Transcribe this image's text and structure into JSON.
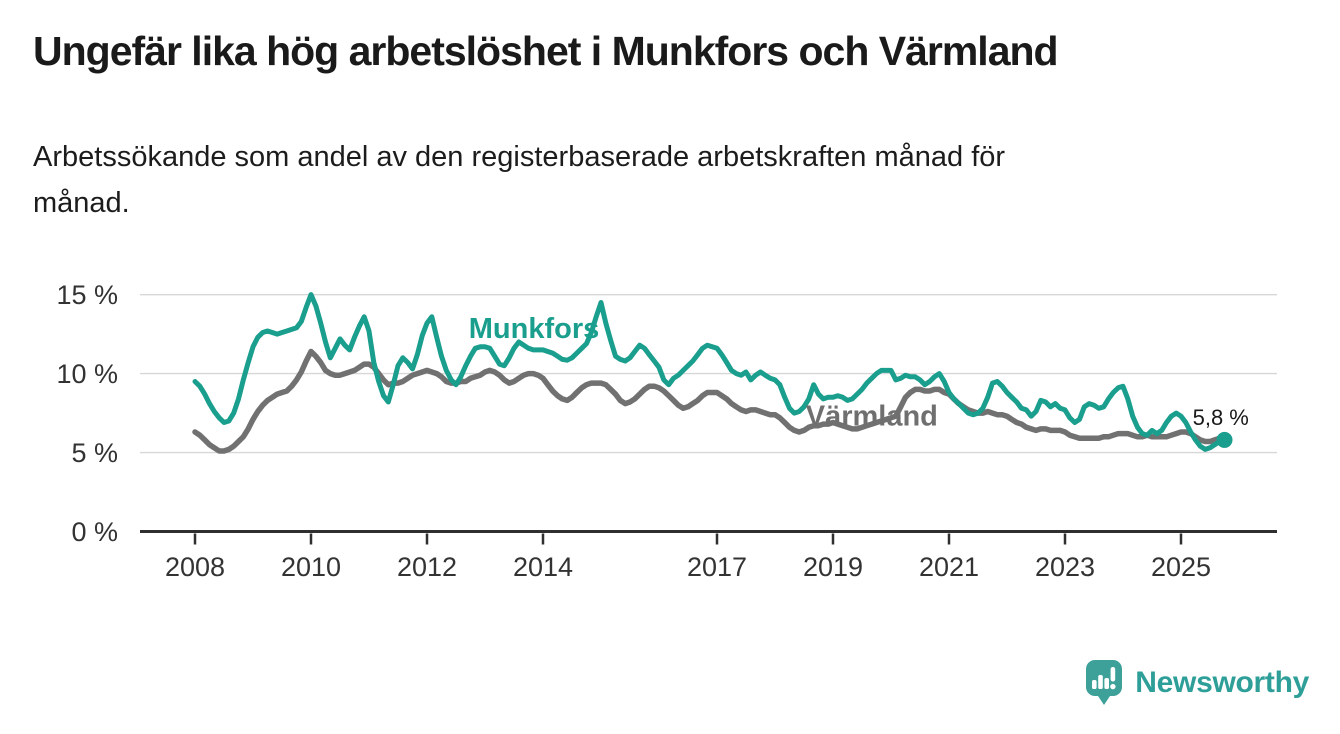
{
  "header": {
    "title": "Ungefär lika hög arbetslöshet i Munkfors och Värmland",
    "subtitle_lines": [
      "Arbetssökande som andel av den registerbaserade arbetskraften månad för",
      "månad."
    ]
  },
  "chart_data": {
    "type": "line",
    "frequency": "monthly",
    "x_start": "2008-01",
    "x_end": "2025-10",
    "grid": true,
    "colors": {
      "munkfors": "#1A9E8D",
      "varmland": "#717171",
      "grid_line": "#d7d7d7",
      "axis": "#2f2f2f",
      "tick_text": "#333333",
      "annotation_text": "#1a1a1a"
    },
    "y_axis": {
      "ylim": [
        0,
        15.8
      ],
      "ticks": [
        {
          "value": 0,
          "label": "0 %"
        },
        {
          "value": 5,
          "label": "5 %"
        },
        {
          "value": 10,
          "label": "10 %"
        },
        {
          "value": 15,
          "label": "15 %"
        }
      ]
    },
    "x_axis": {
      "ticks": [
        {
          "year": 2008,
          "label": "2008"
        },
        {
          "year": 2010,
          "label": "2010"
        },
        {
          "year": 2012,
          "label": "2012"
        },
        {
          "year": 2014,
          "label": "2014"
        },
        {
          "year": 2017,
          "label": "2017"
        },
        {
          "year": 2019,
          "label": "2019"
        },
        {
          "year": 2021,
          "label": "2021"
        },
        {
          "year": 2023,
          "label": "2023"
        },
        {
          "year": 2025,
          "label": "2025"
        }
      ]
    },
    "series": [
      {
        "id": "munkfors",
        "name": "Munkfors",
        "color": "#1A9E8D",
        "line_width": 5,
        "values": [
          9.5,
          9.2,
          8.7,
          8.1,
          7.6,
          7.2,
          6.9,
          7.0,
          7.5,
          8.4,
          9.6,
          10.7,
          11.7,
          12.3,
          12.6,
          12.7,
          12.6,
          12.5,
          12.6,
          12.7,
          12.8,
          12.9,
          13.3,
          14.2,
          15.0,
          14.3,
          13.2,
          12.0,
          11.0,
          11.6,
          12.2,
          11.8,
          11.5,
          12.3,
          13.0,
          13.6,
          12.7,
          10.7,
          9.5,
          8.6,
          8.2,
          9.3,
          10.5,
          11.0,
          10.7,
          10.3,
          11.2,
          12.4,
          13.2,
          13.6,
          12.3,
          11.1,
          10.2,
          9.6,
          9.3,
          9.8,
          10.5,
          11.1,
          11.6,
          11.7,
          11.7,
          11.6,
          11.1,
          10.6,
          10.5,
          11.0,
          11.6,
          12.0,
          11.8,
          11.6,
          11.5,
          11.5,
          11.5,
          11.4,
          11.3,
          11.1,
          10.9,
          10.85,
          11.0,
          11.3,
          11.6,
          11.9,
          12.6,
          13.6,
          14.5,
          13.2,
          12.1,
          11.1,
          10.9,
          10.8,
          11.0,
          11.4,
          11.8,
          11.6,
          11.2,
          10.8,
          10.4,
          9.6,
          9.3,
          9.7,
          9.9,
          10.2,
          10.5,
          10.8,
          11.2,
          11.6,
          11.8,
          11.7,
          11.6,
          11.2,
          10.7,
          10.2,
          10.0,
          9.9,
          10.1,
          9.6,
          9.9,
          10.1,
          9.9,
          9.7,
          9.6,
          9.3,
          8.5,
          7.8,
          7.5,
          7.6,
          7.9,
          8.4,
          9.3,
          8.7,
          8.4,
          8.5,
          8.5,
          8.6,
          8.5,
          8.3,
          8.4,
          8.7,
          9.0,
          9.4,
          9.7,
          10.0,
          10.2,
          10.2,
          10.2,
          9.6,
          9.7,
          9.9,
          9.8,
          9.8,
          9.6,
          9.3,
          9.5,
          9.8,
          10.0,
          9.5,
          8.8,
          8.4,
          8.1,
          7.8,
          7.5,
          7.4,
          7.5,
          7.8,
          8.5,
          9.4,
          9.5,
          9.2,
          8.8,
          8.5,
          8.2,
          7.8,
          7.7,
          7.3,
          7.6,
          8.3,
          8.2,
          7.9,
          8.1,
          7.8,
          7.7,
          7.2,
          6.9,
          7.1,
          7.9,
          8.1,
          8.0,
          7.8,
          7.9,
          8.4,
          8.8,
          9.1,
          9.2,
          8.4,
          7.3,
          6.6,
          6.2,
          6.1,
          6.4,
          6.2,
          6.4,
          6.9,
          7.3,
          7.5,
          7.3,
          6.9,
          6.3,
          5.8,
          5.4,
          5.2,
          5.3,
          5.5,
          5.7,
          5.8
        ]
      },
      {
        "id": "varmland",
        "name": "Värmland",
        "color": "#717171",
        "line_width": 5.5,
        "values": [
          6.3,
          6.1,
          5.8,
          5.5,
          5.3,
          5.1,
          5.1,
          5.2,
          5.4,
          5.7,
          6.0,
          6.5,
          7.1,
          7.6,
          8.0,
          8.3,
          8.5,
          8.7,
          8.8,
          8.9,
          9.2,
          9.6,
          10.1,
          10.8,
          11.4,
          11.1,
          10.7,
          10.2,
          10.0,
          9.9,
          9.9,
          10.0,
          10.1,
          10.2,
          10.4,
          10.6,
          10.6,
          10.4,
          10.0,
          9.6,
          9.3,
          9.4,
          9.4,
          9.5,
          9.7,
          9.9,
          10.0,
          10.1,
          10.2,
          10.1,
          10.0,
          9.8,
          9.5,
          9.4,
          9.4,
          9.5,
          9.5,
          9.7,
          9.8,
          9.9,
          10.1,
          10.2,
          10.1,
          9.9,
          9.6,
          9.4,
          9.5,
          9.7,
          9.9,
          10.0,
          10.0,
          9.9,
          9.7,
          9.3,
          8.9,
          8.6,
          8.4,
          8.3,
          8.5,
          8.8,
          9.1,
          9.3,
          9.4,
          9.4,
          9.4,
          9.3,
          9.0,
          8.7,
          8.3,
          8.1,
          8.2,
          8.4,
          8.7,
          9.0,
          9.2,
          9.2,
          9.1,
          8.9,
          8.6,
          8.3,
          8.0,
          7.8,
          7.9,
          8.1,
          8.3,
          8.6,
          8.8,
          8.8,
          8.8,
          8.6,
          8.4,
          8.1,
          7.9,
          7.7,
          7.6,
          7.7,
          7.7,
          7.6,
          7.5,
          7.4,
          7.4,
          7.2,
          6.9,
          6.6,
          6.4,
          6.3,
          6.4,
          6.6,
          6.7,
          6.7,
          6.8,
          6.8,
          6.9,
          6.8,
          6.7,
          6.6,
          6.5,
          6.5,
          6.6,
          6.7,
          6.8,
          6.9,
          7.0,
          7.1,
          7.2,
          7.3,
          7.9,
          8.5,
          8.8,
          9.0,
          9.0,
          8.9,
          8.9,
          9.0,
          9.0,
          8.8,
          8.7,
          8.4,
          8.1,
          7.9,
          7.7,
          7.6,
          7.5,
          7.5,
          7.6,
          7.5,
          7.4,
          7.4,
          7.3,
          7.1,
          6.9,
          6.8,
          6.6,
          6.5,
          6.4,
          6.5,
          6.5,
          6.4,
          6.4,
          6.4,
          6.3,
          6.1,
          6.0,
          5.9,
          5.9,
          5.9,
          5.9,
          5.9,
          6.0,
          6.0,
          6.1,
          6.2,
          6.2,
          6.2,
          6.1,
          6.0,
          6.0,
          6.1,
          6.0,
          6.0,
          6.0,
          6.0,
          6.1,
          6.2,
          6.3,
          6.3,
          6.2,
          6.0,
          5.8,
          5.7,
          5.7,
          5.8,
          5.9,
          6.0
        ]
      }
    ],
    "series_labels": [
      {
        "series": "munkfors",
        "text": "Munkfors",
        "year": 2012.72,
        "value": 12.25,
        "color": "#1A9E8D"
      },
      {
        "series": "varmland",
        "text": "Värmland",
        "year": 2018.53,
        "value": 6.72,
        "color": "#6f6f6f"
      }
    ],
    "end_annotation": {
      "text": "5,8 %",
      "year": 2025.2,
      "value": 6.75,
      "series": "munkfors",
      "last_value": 5.8
    }
  },
  "footer": {
    "brand": "Newsworthy",
    "brand_color": "#2E9F98",
    "logo_color": "#3DA099",
    "logo_icon": "bar-chart-speech-bubble"
  }
}
